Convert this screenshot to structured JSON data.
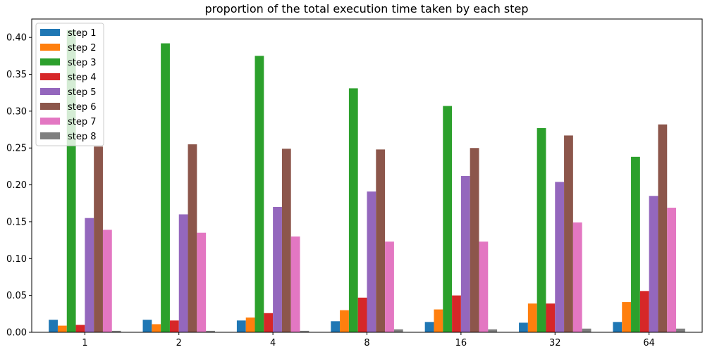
{
  "chart_data": {
    "type": "bar",
    "title": "proportion of the total execution time taken by each step",
    "xlabel": "",
    "ylabel": "",
    "categories": [
      "1",
      "2",
      "4",
      "8",
      "16",
      "32",
      "64"
    ],
    "ylim": [
      0,
      0.425
    ],
    "yticks": [
      "0.00",
      "0.05",
      "0.10",
      "0.15",
      "0.20",
      "0.25",
      "0.30",
      "0.35",
      "0.40"
    ],
    "legend_position": "top-left",
    "series": [
      {
        "name": "step 1",
        "color": "#1f77b4",
        "values": [
          0.017,
          0.017,
          0.016,
          0.015,
          0.014,
          0.013,
          0.014
        ]
      },
      {
        "name": "step 2",
        "color": "#ff7f0e",
        "values": [
          0.009,
          0.011,
          0.02,
          0.03,
          0.031,
          0.039,
          0.041
        ]
      },
      {
        "name": "step 3",
        "color": "#2ca02c",
        "values": [
          0.41,
          0.392,
          0.375,
          0.331,
          0.307,
          0.277,
          0.238
        ]
      },
      {
        "name": "step 4",
        "color": "#d62728",
        "values": [
          0.01,
          0.016,
          0.026,
          0.047,
          0.05,
          0.039,
          0.056
        ]
      },
      {
        "name": "step 5",
        "color": "#9467bd",
        "values": [
          0.155,
          0.16,
          0.17,
          0.191,
          0.212,
          0.204,
          0.185
        ]
      },
      {
        "name": "step 6",
        "color": "#8c564b",
        "values": [
          0.252,
          0.255,
          0.249,
          0.248,
          0.25,
          0.267,
          0.282
        ]
      },
      {
        "name": "step 7",
        "color": "#e377c2",
        "values": [
          0.139,
          0.135,
          0.13,
          0.123,
          0.123,
          0.149,
          0.169
        ]
      },
      {
        "name": "step 8",
        "color": "#7f7f7f",
        "values": [
          0.002,
          0.002,
          0.002,
          0.004,
          0.004,
          0.005,
          0.005
        ]
      }
    ]
  }
}
